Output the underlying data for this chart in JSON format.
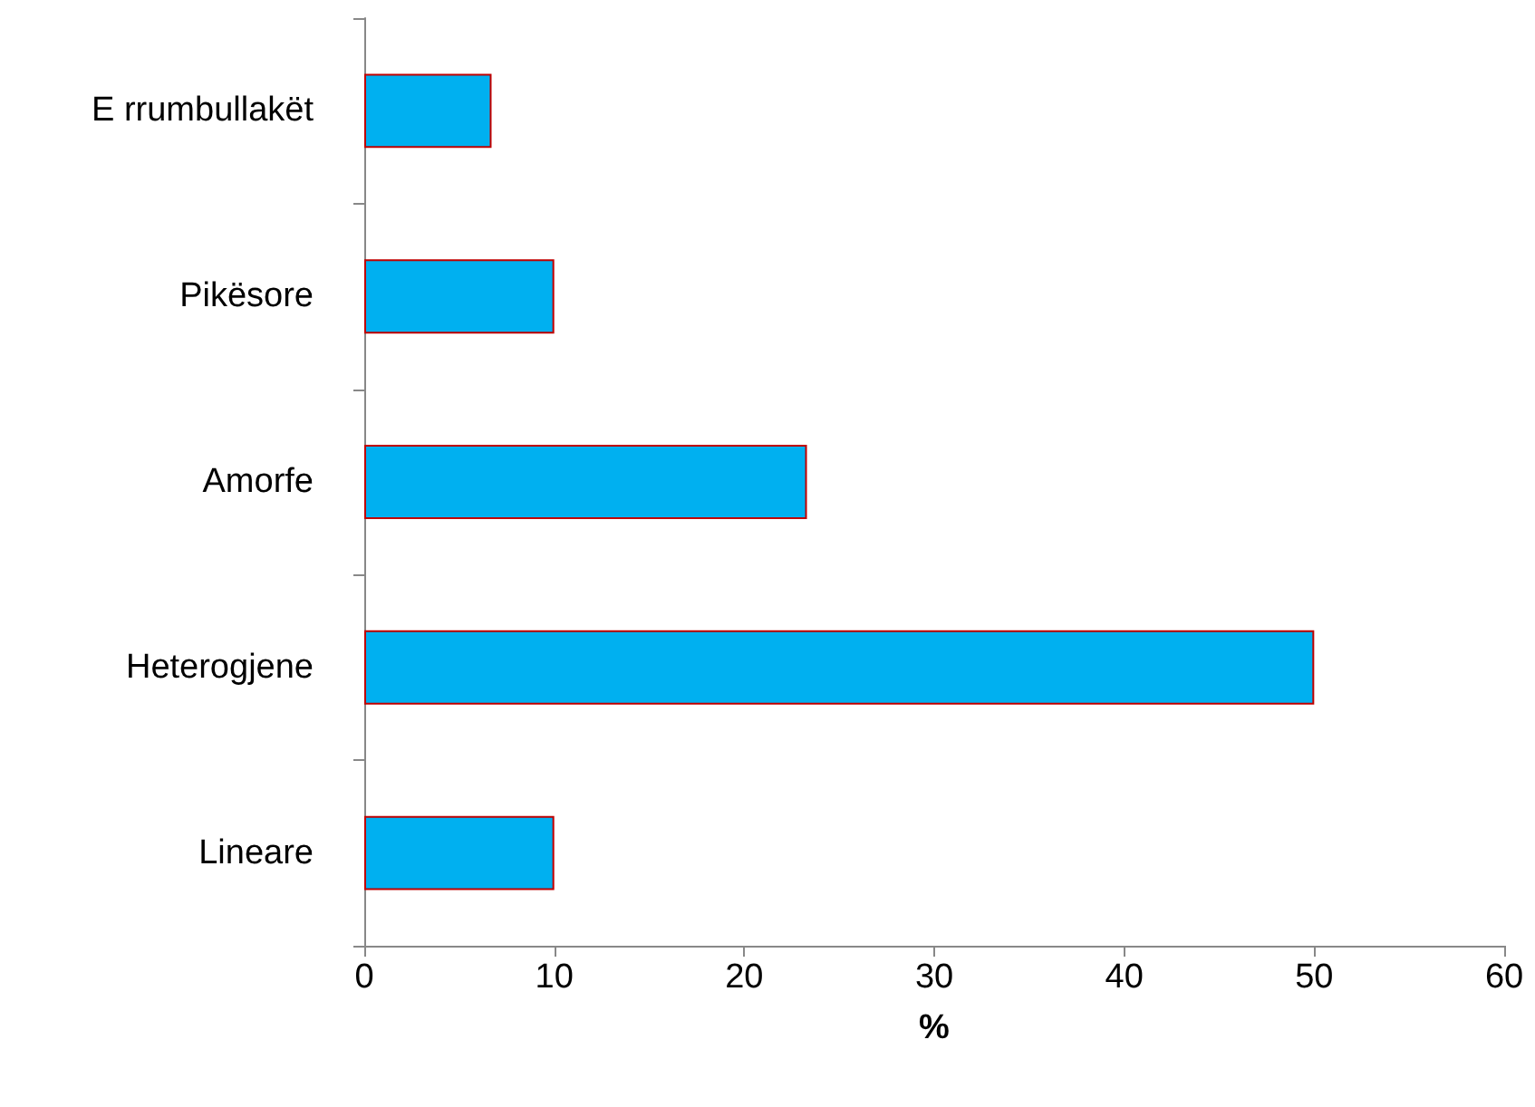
{
  "chart_data": {
    "type": "bar",
    "orientation": "horizontal",
    "xlabel": "%",
    "categories": [
      "E rrumbullakët",
      "Pikësore",
      "Amorfe",
      "Heterogjene",
      "Lineare"
    ],
    "values": [
      6.7,
      10,
      23.3,
      50,
      10
    ],
    "color": "#00b0f0",
    "xlim": [
      0,
      60
    ],
    "xticks": [
      0,
      10,
      20,
      30,
      40,
      50,
      60
    ],
    "grid": false
  }
}
